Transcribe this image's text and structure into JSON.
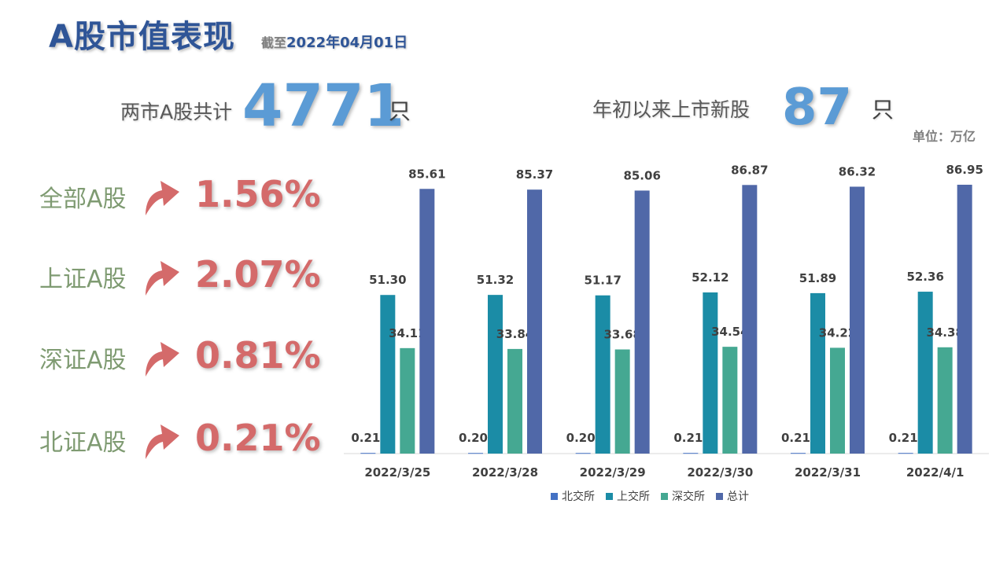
{
  "header": {
    "title": "A股市值表现",
    "asof_prefix": "截至",
    "asof_date": "2022年04月01日"
  },
  "stats": {
    "total_label": "两市A股共计",
    "total_value": "4771",
    "total_unit": "只",
    "new_label": "年初以来上市新股",
    "new_value": "87",
    "new_unit": "只"
  },
  "unit_note": "单位：万亿",
  "indices": [
    {
      "name": "全部A股",
      "change": "1.56%",
      "direction": "up"
    },
    {
      "name": "上证A股",
      "change": "2.07%",
      "direction": "up"
    },
    {
      "name": "深证A股",
      "change": "0.81%",
      "direction": "up"
    },
    {
      "name": "北证A股",
      "change": "0.21%",
      "direction": "up"
    }
  ],
  "colors": {
    "title": "#2f5597",
    "stat_number": "#5b9bd5",
    "index_name": "#7f9b72",
    "index_change": "#d46a6a",
    "series": [
      "#4472c4",
      "#1b8ca6",
      "#45a892",
      "#5068a8"
    ]
  },
  "chart_data": {
    "type": "bar",
    "categories": [
      "2022/3/25",
      "2022/3/28",
      "2022/3/29",
      "2022/3/30",
      "2022/3/31",
      "2022/4/1"
    ],
    "series": [
      {
        "name": "北交所",
        "values": [
          0.21,
          0.2,
          0.2,
          0.21,
          0.21,
          0.21
        ]
      },
      {
        "name": "上交所",
        "values": [
          51.3,
          51.32,
          51.17,
          52.12,
          51.89,
          52.36
        ]
      },
      {
        "name": "深交所",
        "values": [
          34.11,
          33.84,
          33.68,
          34.54,
          34.22,
          34.38
        ]
      },
      {
        "name": "总计",
        "values": [
          85.61,
          85.37,
          85.06,
          86.87,
          86.32,
          86.95
        ]
      }
    ],
    "ylim": [
      0,
      90
    ],
    "grid": false,
    "legend_position": "bottom",
    "data_labels": true
  }
}
